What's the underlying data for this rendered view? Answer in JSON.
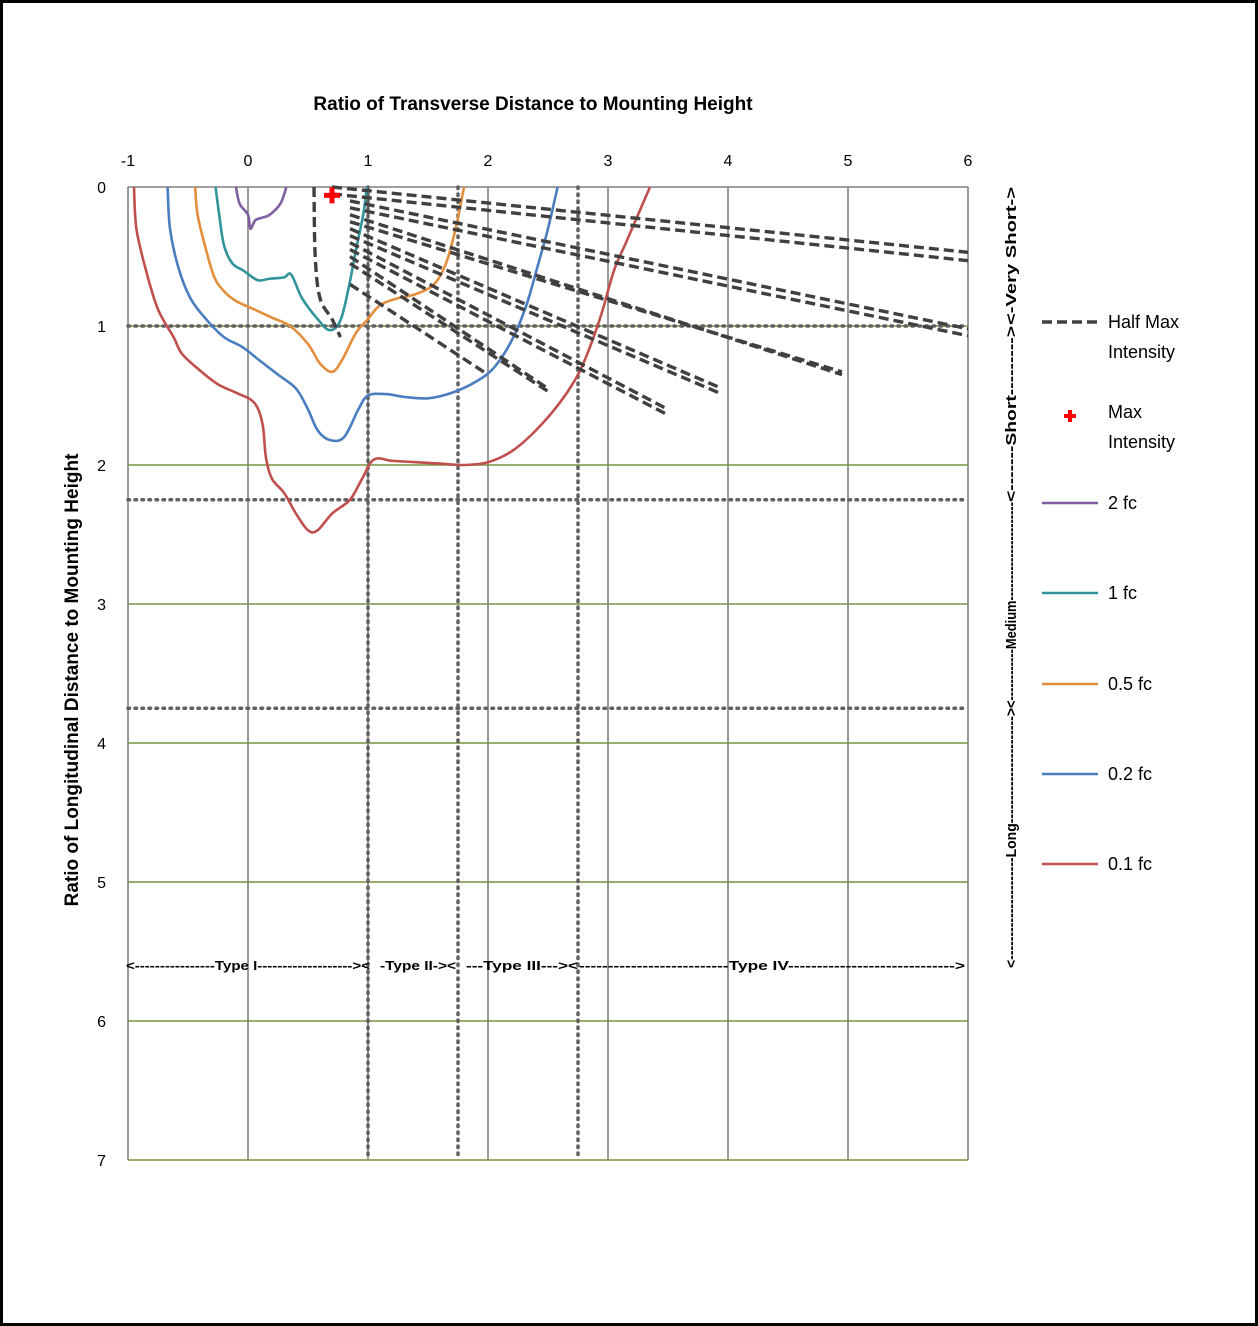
{
  "chart_data": {
    "type": "line",
    "title": "Ratio of Transverse Distance to Mounting Height",
    "xlabel": "",
    "ylabel": "Ratio of Longitudinal Distance to Mounting Height",
    "xlim": [
      -1,
      6
    ],
    "ylim": [
      7,
      0
    ],
    "x_ticks": [
      "-1",
      "0",
      "1",
      "2",
      "3",
      "4",
      "5",
      "6"
    ],
    "y_ticks": [
      "0",
      "1",
      "2",
      "3",
      "4",
      "5",
      "6",
      "7"
    ],
    "grid": true,
    "major_gridline_color": "#808080",
    "minor_gridline_color": "#77933c",
    "type_boundaries_x": [
      1,
      1.75,
      2.75
    ],
    "range_boundaries_y": [
      1,
      2.25,
      3.75
    ],
    "bottom_type_labels": {
      "type1": "<----------------Type I-------------------><",
      "type2": "-Type  II-><",
      "type3": "---Type III---><",
      "type4": "--------------------------Type IV----------------------------->"
    },
    "right_range_labels": {
      "very_short": "<-Very Short->",
      "short": "<-------Short--------->",
      "medium": "<------------Medium-----------------------",
      "long": "<----------------------Long----------------------->"
    },
    "legend_position": "right",
    "series": [
      {
        "name": "2 fc",
        "color": "#7f5fa0",
        "points": [
          [
            -0.1,
            0
          ],
          [
            -0.07,
            0.12
          ],
          [
            0.0,
            0.2
          ],
          [
            0.02,
            0.3
          ],
          [
            0.06,
            0.24
          ],
          [
            0.12,
            0.22
          ],
          [
            0.18,
            0.2
          ],
          [
            0.27,
            0.12
          ],
          [
            0.32,
            0
          ]
        ]
      },
      {
        "name": "1 fc",
        "color": "#31949a",
        "points": [
          [
            -0.27,
            0
          ],
          [
            -0.24,
            0.2
          ],
          [
            -0.2,
            0.42
          ],
          [
            -0.13,
            0.55
          ],
          [
            -0.04,
            0.6
          ],
          [
            0.08,
            0.67
          ],
          [
            0.18,
            0.66
          ],
          [
            0.3,
            0.65
          ],
          [
            0.36,
            0.63
          ],
          [
            0.45,
            0.8
          ],
          [
            0.58,
            0.95
          ],
          [
            0.68,
            1.03
          ],
          [
            0.77,
            0.96
          ],
          [
            0.84,
            0.72
          ],
          [
            0.9,
            0.45
          ],
          [
            0.96,
            0.2
          ],
          [
            0.99,
            0
          ]
        ]
      },
      {
        "name": "0.5 fc",
        "color": "#e38e3d",
        "points": [
          [
            -0.44,
            0
          ],
          [
            -0.42,
            0.2
          ],
          [
            -0.35,
            0.45
          ],
          [
            -0.28,
            0.65
          ],
          [
            -0.2,
            0.75
          ],
          [
            -0.1,
            0.82
          ],
          [
            0.05,
            0.88
          ],
          [
            0.2,
            0.94
          ],
          [
            0.35,
            1.0
          ],
          [
            0.5,
            1.13
          ],
          [
            0.6,
            1.27
          ],
          [
            0.7,
            1.33
          ],
          [
            0.78,
            1.25
          ],
          [
            0.9,
            1.05
          ],
          [
            1.0,
            0.95
          ],
          [
            1.1,
            0.85
          ],
          [
            1.25,
            0.8
          ],
          [
            1.4,
            0.77
          ],
          [
            1.55,
            0.7
          ],
          [
            1.65,
            0.55
          ],
          [
            1.73,
            0.3
          ],
          [
            1.8,
            0
          ]
        ]
      },
      {
        "name": "0.2 fc",
        "color": "#4a7ec1",
        "points": [
          [
            -0.67,
            0
          ],
          [
            -0.65,
            0.3
          ],
          [
            -0.58,
            0.58
          ],
          [
            -0.48,
            0.8
          ],
          [
            -0.35,
            0.95
          ],
          [
            -0.2,
            1.08
          ],
          [
            -0.05,
            1.15
          ],
          [
            0.1,
            1.25
          ],
          [
            0.25,
            1.35
          ],
          [
            0.4,
            1.45
          ],
          [
            0.5,
            1.6
          ],
          [
            0.58,
            1.75
          ],
          [
            0.68,
            1.82
          ],
          [
            0.8,
            1.8
          ],
          [
            0.92,
            1.6
          ],
          [
            1.0,
            1.5
          ],
          [
            1.15,
            1.49
          ],
          [
            1.3,
            1.51
          ],
          [
            1.5,
            1.52
          ],
          [
            1.7,
            1.48
          ],
          [
            1.9,
            1.4
          ],
          [
            2.05,
            1.3
          ],
          [
            2.2,
            1.1
          ],
          [
            2.32,
            0.85
          ],
          [
            2.42,
            0.55
          ],
          [
            2.5,
            0.3
          ],
          [
            2.58,
            0
          ]
        ]
      },
      {
        "name": "0.1 fc",
        "color": "#c0504d",
        "points": [
          [
            -0.95,
            0
          ],
          [
            -0.93,
            0.3
          ],
          [
            -0.85,
            0.6
          ],
          [
            -0.75,
            0.88
          ],
          [
            -0.62,
            1.08
          ],
          [
            -0.55,
            1.2
          ],
          [
            -0.4,
            1.32
          ],
          [
            -0.25,
            1.42
          ],
          [
            -0.1,
            1.48
          ],
          [
            0.05,
            1.55
          ],
          [
            0.12,
            1.7
          ],
          [
            0.15,
            1.95
          ],
          [
            0.2,
            2.1
          ],
          [
            0.3,
            2.2
          ],
          [
            0.4,
            2.35
          ],
          [
            0.5,
            2.47
          ],
          [
            0.58,
            2.47
          ],
          [
            0.7,
            2.35
          ],
          [
            0.85,
            2.25
          ],
          [
            0.95,
            2.1
          ],
          [
            1.05,
            1.96
          ],
          [
            1.2,
            1.97
          ],
          [
            1.4,
            1.98
          ],
          [
            1.6,
            1.99
          ],
          [
            1.8,
            2.0
          ],
          [
            2.0,
            1.98
          ],
          [
            2.2,
            1.9
          ],
          [
            2.4,
            1.75
          ],
          [
            2.6,
            1.55
          ],
          [
            2.75,
            1.35
          ],
          [
            2.85,
            1.15
          ],
          [
            2.95,
            0.9
          ],
          [
            3.05,
            0.6
          ],
          [
            3.15,
            0.4
          ],
          [
            3.25,
            0.2
          ],
          [
            3.35,
            0
          ]
        ]
      }
    ],
    "half_max_intensity": {
      "name": "Half Max Intensity",
      "color": "#404040",
      "lines": [
        [
          [
            0.55,
            0
          ],
          [
            0.56,
            0.5
          ],
          [
            0.6,
            0.8
          ],
          [
            0.7,
            0.95
          ],
          [
            0.77,
            1.08
          ]
        ],
        [
          [
            0.7,
            0
          ],
          [
            6,
            0.47
          ]
        ],
        [
          [
            0.7,
            0.05
          ],
          [
            6,
            0.53
          ]
        ],
        [
          [
            0.85,
            0.1
          ],
          [
            6,
            1.02
          ]
        ],
        [
          [
            0.85,
            0.15
          ],
          [
            6,
            1.07
          ]
        ],
        [
          [
            0.85,
            0.2
          ],
          [
            4.95,
            1.35
          ]
        ],
        [
          [
            0.85,
            0.25
          ],
          [
            4.95,
            1.33
          ]
        ],
        [
          [
            0.85,
            0.3
          ],
          [
            3.95,
            1.45
          ]
        ],
        [
          [
            0.85,
            0.35
          ],
          [
            3.95,
            1.49
          ]
        ],
        [
          [
            0.85,
            0.4
          ],
          [
            3.5,
            1.6
          ]
        ],
        [
          [
            0.85,
            0.45
          ],
          [
            3.5,
            1.64
          ]
        ],
        [
          [
            0.85,
            0.5
          ],
          [
            2.5,
            1.45
          ]
        ],
        [
          [
            0.85,
            0.55
          ],
          [
            2.5,
            1.47
          ]
        ],
        [
          [
            0.85,
            0.7
          ],
          [
            2.0,
            1.35
          ]
        ]
      ]
    },
    "max_intensity": {
      "name": "Max Intensity",
      "color": "#ff0000",
      "x": 0.7,
      "y": 0.06
    }
  }
}
